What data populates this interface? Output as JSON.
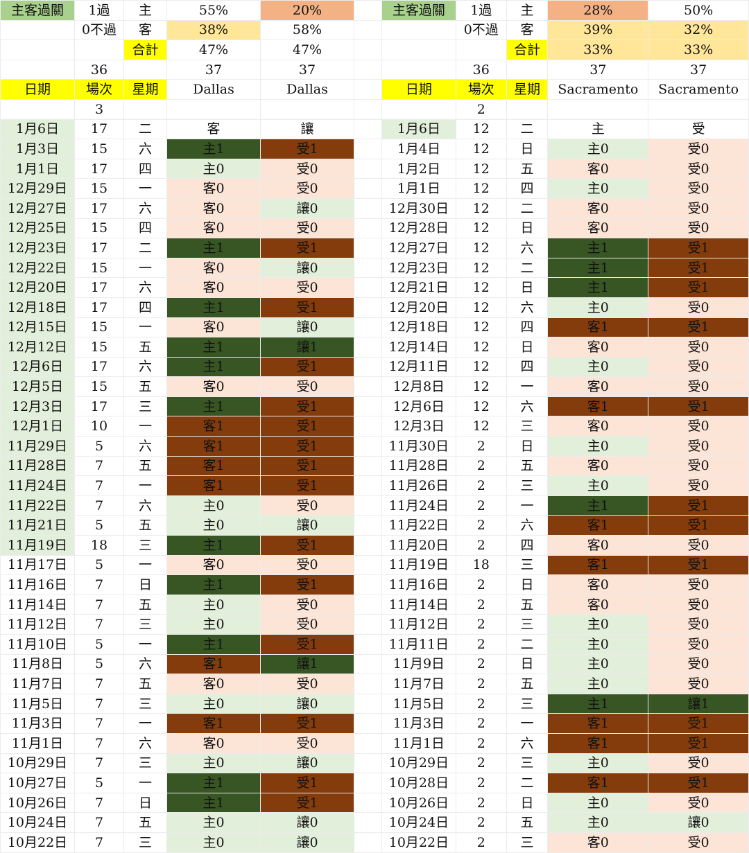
{
  "left": {
    "header": {
      "label": "主客過關",
      "pass_label": "1過",
      "fail_label": "0不過",
      "total_label": "合計",
      "home_label": "主",
      "away_label": "客",
      "home_pct_a": "55%",
      "home_pct_b": "20%",
      "away_pct_a": "38%",
      "away_pct_b": "58%",
      "total_pct_a": "47%",
      "total_pct_b": "47%",
      "count_a": "36",
      "count_b": "37",
      "count_c": "37"
    },
    "columns": [
      "日期",
      "場次",
      "星期",
      "Dallas",
      "Dallas"
    ],
    "pre_value": "3",
    "rows": [
      [
        "1月6日",
        "17",
        "二",
        "客",
        "讓",
        "w",
        "w"
      ],
      [
        "1月3日",
        "15",
        "六",
        "主1",
        "受1",
        "dg",
        "br"
      ],
      [
        "1月1日",
        "17",
        "四",
        "主0",
        "受0",
        "lg",
        "pk"
      ],
      [
        "12月29日",
        "15",
        "一",
        "客0",
        "受0",
        "pk",
        "pk"
      ],
      [
        "12月27日",
        "17",
        "六",
        "客0",
        "讓0",
        "pk",
        "lg"
      ],
      [
        "12月25日",
        "15",
        "四",
        "客0",
        "受0",
        "pk",
        "pk"
      ],
      [
        "12月23日",
        "17",
        "二",
        "主1",
        "受1",
        "dg",
        "br"
      ],
      [
        "12月22日",
        "15",
        "一",
        "客0",
        "讓0",
        "pk",
        "lg"
      ],
      [
        "12月20日",
        "17",
        "六",
        "客0",
        "受0",
        "pk",
        "pk"
      ],
      [
        "12月18日",
        "17",
        "四",
        "主1",
        "受1",
        "dg",
        "br"
      ],
      [
        "12月15日",
        "15",
        "一",
        "客0",
        "讓0",
        "pk",
        "lg"
      ],
      [
        "12月12日",
        "15",
        "五",
        "主1",
        "讓1",
        "dg",
        "dg"
      ],
      [
        "12月6日",
        "17",
        "六",
        "主1",
        "受1",
        "dg",
        "br"
      ],
      [
        "12月5日",
        "15",
        "五",
        "客0",
        "受0",
        "pk",
        "pk"
      ],
      [
        "12月3日",
        "17",
        "三",
        "主1",
        "受1",
        "dg",
        "br"
      ],
      [
        "12月1日",
        "10",
        "一",
        "客1",
        "受1",
        "br",
        "br"
      ],
      [
        "11月29日",
        "5",
        "六",
        "客1",
        "受1",
        "br",
        "br"
      ],
      [
        "11月28日",
        "7",
        "五",
        "客1",
        "受1",
        "br",
        "br"
      ],
      [
        "11月24日",
        "7",
        "一",
        "客1",
        "受1",
        "br",
        "br"
      ],
      [
        "11月22日",
        "7",
        "六",
        "主0",
        "受0",
        "lg",
        "pk"
      ],
      [
        "11月21日",
        "5",
        "五",
        "主0",
        "讓0",
        "lg",
        "lg"
      ],
      [
        "11月19日",
        "18",
        "三",
        "主1",
        "受1",
        "dg",
        "br"
      ],
      [
        "11月17日",
        "5",
        "一",
        "客0",
        "受0",
        "pk",
        "pk"
      ],
      [
        "11月16日",
        "7",
        "日",
        "主1",
        "受1",
        "dg",
        "br"
      ],
      [
        "11月14日",
        "7",
        "五",
        "主0",
        "受0",
        "lg",
        "pk"
      ],
      [
        "11月12日",
        "7",
        "三",
        "主0",
        "受0",
        "lg",
        "pk"
      ],
      [
        "11月10日",
        "5",
        "一",
        "主1",
        "受1",
        "dg",
        "br"
      ],
      [
        "11月8日",
        "5",
        "六",
        "客1",
        "讓1",
        "br",
        "dg"
      ],
      [
        "11月7日",
        "7",
        "五",
        "客0",
        "受0",
        "pk",
        "pk"
      ],
      [
        "11月5日",
        "7",
        "三",
        "主0",
        "讓0",
        "lg",
        "lg"
      ],
      [
        "11月3日",
        "7",
        "一",
        "客1",
        "受1",
        "br",
        "br"
      ],
      [
        "11月1日",
        "7",
        "六",
        "客0",
        "受0",
        "pk",
        "pk"
      ],
      [
        "10月29日",
        "7",
        "三",
        "主0",
        "讓0",
        "lg",
        "lg"
      ],
      [
        "10月27日",
        "5",
        "一",
        "主1",
        "受1",
        "dg",
        "br"
      ],
      [
        "10月26日",
        "7",
        "日",
        "主1",
        "受1",
        "dg",
        "br"
      ],
      [
        "10月24日",
        "7",
        "五",
        "主0",
        "讓0",
        "lg",
        "lg"
      ],
      [
        "10月22日",
        "7",
        "三",
        "主0",
        "讓0",
        "lg",
        "lg"
      ]
    ],
    "green_date_rows": 22
  },
  "right": {
    "header": {
      "label": "主客過關",
      "pass_label": "1過",
      "fail_label": "0不過",
      "total_label": "合計",
      "home_label": "主",
      "away_label": "客",
      "home_pct_a": "28%",
      "home_pct_b": "50%",
      "away_pct_a": "39%",
      "away_pct_b": "32%",
      "total_pct_a": "33%",
      "total_pct_b": "33%",
      "count_a": "36",
      "count_b": "37",
      "count_c": "37"
    },
    "columns": [
      "日期",
      "場次",
      "星期",
      "Sacramento",
      "Sacramento"
    ],
    "pre_value": "2",
    "rows": [
      [
        "1月6日",
        "12",
        "二",
        "主",
        "受",
        "w",
        "w"
      ],
      [
        "1月4日",
        "12",
        "日",
        "主0",
        "受0",
        "lg",
        "pk"
      ],
      [
        "1月2日",
        "12",
        "五",
        "客0",
        "受0",
        "pk",
        "pk"
      ],
      [
        "1月1日",
        "12",
        "四",
        "主0",
        "受0",
        "lg",
        "pk"
      ],
      [
        "12月30日",
        "12",
        "二",
        "客0",
        "受0",
        "pk",
        "pk"
      ],
      [
        "12月28日",
        "12",
        "日",
        "客0",
        "受0",
        "pk",
        "pk"
      ],
      [
        "12月27日",
        "12",
        "六",
        "主1",
        "受1",
        "dg",
        "br"
      ],
      [
        "12月23日",
        "12",
        "二",
        "主1",
        "受1",
        "dg",
        "br"
      ],
      [
        "12月21日",
        "12",
        "日",
        "主1",
        "受1",
        "dg",
        "br"
      ],
      [
        "12月20日",
        "12",
        "六",
        "主0",
        "受0",
        "lg",
        "pk"
      ],
      [
        "12月18日",
        "12",
        "四",
        "客1",
        "受1",
        "br",
        "br"
      ],
      [
        "12月14日",
        "12",
        "日",
        "客0",
        "受0",
        "pk",
        "pk"
      ],
      [
        "12月11日",
        "12",
        "四",
        "主0",
        "受0",
        "lg",
        "pk"
      ],
      [
        "12月8日",
        "12",
        "一",
        "客0",
        "受0",
        "pk",
        "pk"
      ],
      [
        "12月6日",
        "12",
        "六",
        "客1",
        "受1",
        "br",
        "br"
      ],
      [
        "12月3日",
        "12",
        "三",
        "客0",
        "受0",
        "pk",
        "pk"
      ],
      [
        "11月30日",
        "2",
        "日",
        "主0",
        "受0",
        "lg",
        "pk"
      ],
      [
        "11月28日",
        "2",
        "五",
        "客0",
        "受0",
        "pk",
        "pk"
      ],
      [
        "11月26日",
        "2",
        "三",
        "主0",
        "受0",
        "lg",
        "pk"
      ],
      [
        "11月24日",
        "2",
        "一",
        "主1",
        "受1",
        "dg",
        "br"
      ],
      [
        "11月22日",
        "2",
        "六",
        "客1",
        "受1",
        "br",
        "br"
      ],
      [
        "11月20日",
        "2",
        "四",
        "客0",
        "受0",
        "pk",
        "pk"
      ],
      [
        "11月19日",
        "18",
        "三",
        "客1",
        "受1",
        "br",
        "br"
      ],
      [
        "11月16日",
        "2",
        "日",
        "客0",
        "受0",
        "pk",
        "pk"
      ],
      [
        "11月14日",
        "2",
        "五",
        "客0",
        "受0",
        "pk",
        "pk"
      ],
      [
        "11月12日",
        "2",
        "三",
        "主0",
        "受0",
        "lg",
        "pk"
      ],
      [
        "11月11日",
        "2",
        "二",
        "主0",
        "受0",
        "lg",
        "pk"
      ],
      [
        "11月9日",
        "2",
        "日",
        "主0",
        "受0",
        "lg",
        "pk"
      ],
      [
        "11月7日",
        "2",
        "五",
        "主0",
        "受0",
        "lg",
        "pk"
      ],
      [
        "11月5日",
        "2",
        "三",
        "主1",
        "讓1",
        "dg",
        "dg"
      ],
      [
        "11月3日",
        "2",
        "一",
        "客1",
        "受1",
        "br",
        "br"
      ],
      [
        "11月1日",
        "2",
        "六",
        "客1",
        "受1",
        "br",
        "br"
      ],
      [
        "10月29日",
        "2",
        "三",
        "主0",
        "受0",
        "lg",
        "pk"
      ],
      [
        "10月28日",
        "2",
        "二",
        "客1",
        "受1",
        "br",
        "br"
      ],
      [
        "10月26日",
        "2",
        "日",
        "主0",
        "受0",
        "lg",
        "pk"
      ],
      [
        "10月24日",
        "2",
        "五",
        "主0",
        "讓0",
        "lg",
        "lg"
      ],
      [
        "10月22日",
        "2",
        "三",
        "客0",
        "受0",
        "pk",
        "pk"
      ]
    ],
    "green_date_rows": 1
  }
}
